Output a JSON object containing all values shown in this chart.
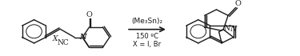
{
  "bg_color": "#ffffff",
  "fig_width": 3.75,
  "fig_height": 0.7,
  "dpi": 100,
  "reagent_text": "(Me₃Sn)₂",
  "condition_text": "150 ºC",
  "substituent_text": "X = I, Br",
  "text_color": "#1a1a1a",
  "line_color": "#1a1a1a",
  "font_size": 7.0
}
